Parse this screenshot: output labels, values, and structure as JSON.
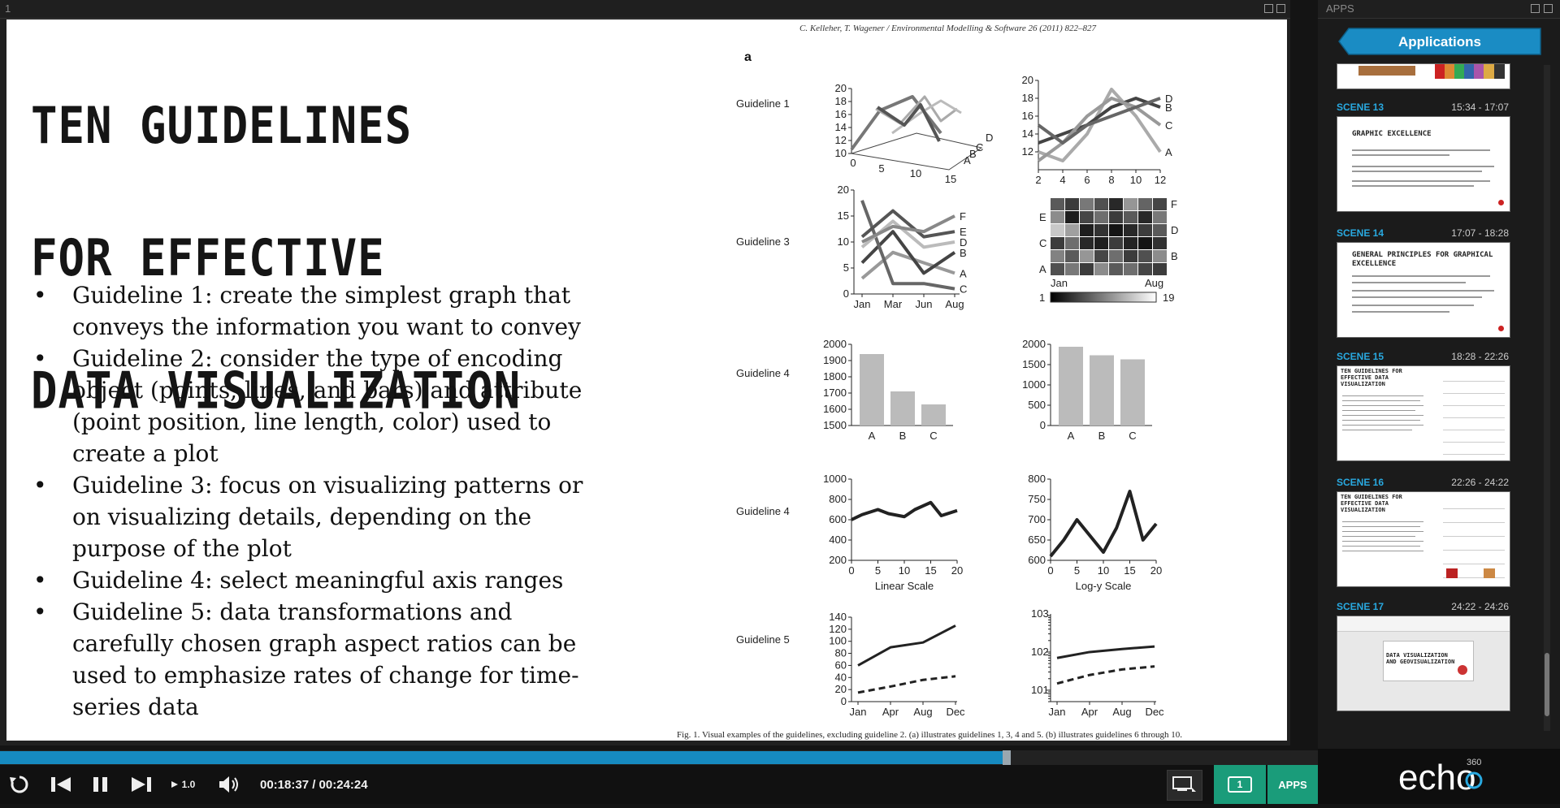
{
  "app": {
    "pane_number": "1",
    "apps_title": "APPS",
    "applications_label": "Applications",
    "brand": "echo",
    "brand_sup": "360"
  },
  "slide": {
    "title_lines": [
      "TEN GUIDELINES",
      "FOR EFFECTIVE",
      "DATA VISUALIZATION"
    ],
    "bullets": [
      "Guideline 1: create the simplest graph that conveys the information you want to convey",
      "Guideline 2: consider the type of encoding object (points, lines, and bars) and attribute (point position, line length, color) used to create a plot",
      "Guideline 3: focus on visualizing patterns or on visualizing details, depending on the purpose of the plot",
      "Guideline 4: select meaningful axis ranges",
      "Guideline 5: data transformations and carefully chosen graph aspect ratios can be used to emphasize rates of change for time-series data"
    ],
    "bullet_glyph": "•",
    "figure": {
      "citation": "C. Kelleher, T. Wagener / Environmental Modelling & Software 26 (2011) 822–827",
      "panel_label": "a",
      "row_labels": [
        "Guideline 1",
        "Guideline 3",
        "Guideline 4",
        "Guideline 4",
        "Guideline 5"
      ],
      "caption": "Fig. 1. Visual examples of the guidelines, excluding guideline 2. (a) illustrates guidelines 1, 3, 4 and 5. (b) illustrates guidelines 6 through 10.",
      "g4_line_xlabels": [
        "Linear Scale",
        "Log-y Scale"
      ],
      "series_letters": [
        "A",
        "B",
        "C",
        "D",
        "E",
        "F"
      ]
    }
  },
  "chart_data": [
    {
      "type": "line",
      "panel": "Guideline 1 (3D)",
      "x": [
        0,
        5,
        10,
        15
      ],
      "ylim": [
        10,
        20
      ],
      "yticks": [
        10,
        12,
        14,
        16,
        18,
        20
      ],
      "xticks": [
        0,
        5,
        10,
        15
      ],
      "series": [
        {
          "name": "A"
        },
        {
          "name": "B"
        },
        {
          "name": "C"
        },
        {
          "name": "D"
        }
      ]
    },
    {
      "type": "line",
      "panel": "Guideline 1 (2D)",
      "x": [
        2,
        4,
        6,
        8,
        10,
        12
      ],
      "ylim": [
        10,
        20
      ],
      "yticks": [
        12,
        14,
        16,
        18,
        20
      ],
      "xticks": [
        2,
        4,
        6,
        8,
        10,
        12
      ],
      "series": [
        {
          "name": "A",
          "values": [
            12,
            11,
            14,
            19,
            16,
            12
          ]
        },
        {
          "name": "B",
          "values": [
            13,
            14,
            15,
            17,
            18,
            17
          ]
        },
        {
          "name": "C",
          "values": [
            11,
            13,
            16,
            18,
            17,
            15
          ]
        },
        {
          "name": "D",
          "values": [
            15,
            13,
            15,
            16,
            17,
            18
          ]
        }
      ]
    },
    {
      "type": "line",
      "panel": "Guideline 3 (lines)",
      "categories": [
        "Jan",
        "Mar",
        "Jun",
        "Aug"
      ],
      "ylim": [
        0,
        20
      ],
      "yticks": [
        0,
        5,
        10,
        15,
        20
      ],
      "series": [
        {
          "name": "A",
          "values": [
            3,
            8,
            6,
            4
          ]
        },
        {
          "name": "B",
          "values": [
            6,
            12,
            4,
            8
          ]
        },
        {
          "name": "C",
          "values": [
            18,
            2,
            2,
            1
          ]
        },
        {
          "name": "D",
          "values": [
            9,
            14,
            9,
            10
          ]
        },
        {
          "name": "E",
          "values": [
            11,
            16,
            11,
            12
          ]
        },
        {
          "name": "F",
          "values": [
            10,
            13,
            12,
            15
          ]
        }
      ]
    },
    {
      "type": "heatmap",
      "panel": "Guideline 3 (heatmap)",
      "rows": [
        "A",
        "B",
        "C",
        "D",
        "E",
        "F"
      ],
      "x_ends": [
        "Jan",
        "Aug"
      ],
      "scale": [
        1,
        19
      ]
    },
    {
      "type": "bar",
      "panel": "Guideline 4 (truncated)",
      "categories": [
        "A",
        "B",
        "C"
      ],
      "values": [
        1940,
        1710,
        1630
      ],
      "ylim": [
        1500,
        2000
      ],
      "yticks": [
        1500,
        1600,
        1700,
        1800,
        1900,
        2000
      ]
    },
    {
      "type": "bar",
      "panel": "Guideline 4 (full)",
      "categories": [
        "A",
        "B",
        "C"
      ],
      "values": [
        1940,
        1730,
        1630
      ],
      "ylim": [
        0,
        2000
      ],
      "yticks": [
        0,
        500,
        1000,
        1500,
        2000
      ]
    },
    {
      "type": "line",
      "panel": "Guideline 4 (wide axis)",
      "x": [
        0,
        2,
        5,
        7,
        10,
        12,
        15,
        17,
        20
      ],
      "values": [
        600,
        650,
        700,
        660,
        630,
        700,
        770,
        640,
        690
      ],
      "ylim": [
        200,
        1000
      ],
      "yticks": [
        200,
        400,
        600,
        800,
        1000
      ],
      "xticks": [
        0,
        5,
        10,
        15,
        20
      ],
      "xlabel": "Linear Scale"
    },
    {
      "type": "line",
      "panel": "Guideline 4 (tight axis)",
      "x": [
        0,
        2.5,
        5,
        7.5,
        10,
        12.5,
        15,
        17.5,
        20
      ],
      "values": [
        610,
        650,
        700,
        660,
        620,
        680,
        770,
        650,
        690
      ],
      "ylim": [
        600,
        800
      ],
      "yticks": [
        600,
        650,
        700,
        750,
        800
      ],
      "xticks": [
        0,
        5,
        10,
        15,
        20
      ],
      "xlabel": "Log-y Scale"
    },
    {
      "type": "line",
      "panel": "Guideline 5 (linear)",
      "categories": [
        "Jan",
        "Apr",
        "Aug",
        "Dec"
      ],
      "ylim": [
        0,
        140
      ],
      "yticks": [
        0,
        20,
        40,
        60,
        80,
        100,
        120,
        140
      ],
      "series": [
        {
          "values": [
            60,
            90,
            98,
            126
          ]
        },
        {
          "values": [
            15,
            25,
            36,
            42
          ]
        }
      ]
    },
    {
      "type": "line",
      "panel": "Guideline 5 (log)",
      "categories": [
        "Jan",
        "Apr",
        "Aug",
        "Dec"
      ],
      "scale": "log",
      "yticks": [
        "10^1",
        "10^2",
        "10^3"
      ],
      "series": [
        {
          "values": [
            70,
            100,
            120,
            140
          ]
        },
        {
          "values": [
            15,
            25,
            35,
            42
          ]
        }
      ]
    }
  ],
  "scenes": [
    {
      "name": "SCENE 13",
      "time": "15:34 - 17:07",
      "thumb_title": "GRAPHIC EXCELLENCE"
    },
    {
      "name": "SCENE 14",
      "time": "17:07 - 18:28",
      "thumb_title": "GENERAL PRINCIPLES FOR GRAPHICAL EXCELLENCE"
    },
    {
      "name": "SCENE 15",
      "time": "18:28 - 22:26",
      "thumb_title": "TEN GUIDELINES FOR EFFECTIVE DATA VISUALIZATION"
    },
    {
      "name": "SCENE 16",
      "time": "22:26 - 24:22",
      "thumb_title": "TEN GUIDELINES FOR EFFECTIVE DATA VISUALIZATION"
    },
    {
      "name": "SCENE 17",
      "time": "24:22 - 24:26",
      "thumb_title": "DATA VISUALIZATION AND GEOVISUALIZATION"
    }
  ],
  "player": {
    "time_display": "00:18:37 / 00:24:24",
    "speed": "1.0",
    "progress": 0.763,
    "screen_count": "1",
    "apps_button": "APPS",
    "icons": [
      "replay-icon",
      "step-back-icon",
      "pause-icon",
      "step-forward-icon",
      "speed-icon",
      "volume-icon",
      "screen-layout-icon"
    ]
  },
  "colors": {
    "accent": "#168ac0",
    "scene_label": "#29a9e0",
    "apps_active": "#1a9c7a",
    "applications_bg": "#1a8cc4"
  }
}
